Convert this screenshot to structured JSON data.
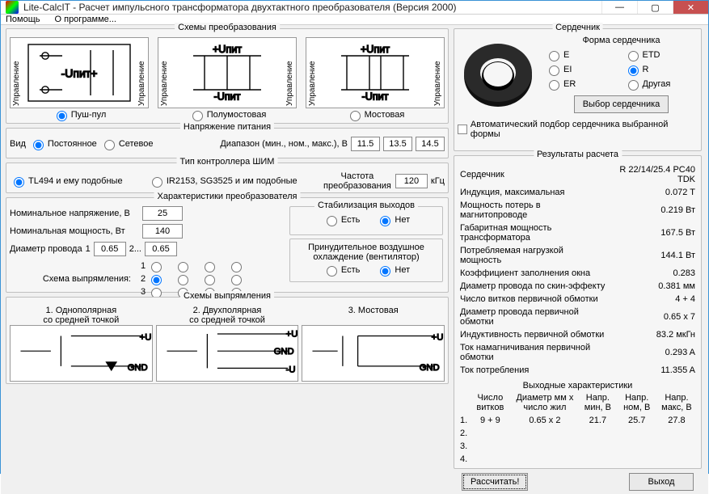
{
  "window": {
    "title": "Lite-CalcIT - Расчет импульсного трансформатора двухтактного преобразователя (Версия 2000)"
  },
  "menu": {
    "help": "Помощь",
    "about": "О программе..."
  },
  "schemes": {
    "group_title": "Схемы преобразования",
    "rot_label": "Управление",
    "upit_pos": "+Uпит",
    "upit_neg": "-Uпит",
    "upit_both": "-Uпит+",
    "opt1": "Пуш-пул",
    "opt2": "Полумостовая",
    "opt3": "Мостовая"
  },
  "voltage": {
    "group_title": "Напряжение питания",
    "kind_label": "Вид",
    "dc": "Постоянное",
    "ac": "Сетевое",
    "range_label": "Диапазон (мин., ном., макс.), В",
    "min": "11.5",
    "nom": "13.5",
    "max": "14.5"
  },
  "pwm": {
    "group_title": "Тип контроллера ШИМ",
    "opt1": "TL494 и ему подобные",
    "opt2": "IR2153, SG3525 и им подобные",
    "freq_label": "Частота преобразования",
    "freq_val": "120",
    "freq_unit": "кГц"
  },
  "conv": {
    "group_title": "Характеристики преобразователя",
    "nom_v": "Номинальное напряжение, В",
    "nom_v_val": "25",
    "nom_p": "Номинальная мощность, Вт",
    "nom_p_val": "140",
    "wire": "Диаметр провода",
    "wire1": "0.65",
    "wire2": "0.65",
    "stab_title": "Стабилизация выходов",
    "yes": "Есть",
    "no": "Нет",
    "cool_title": "Принудительное воздушное охлаждение (вентилятор)",
    "rect_label": "Схема выпрямления:"
  },
  "rect": {
    "group_title": "Схемы выпрямления",
    "t1a": "1. Однополярная",
    "t1b": "со средней точкой",
    "t2a": "2. Двухполярная",
    "t2b": "со средней точкой",
    "t3": "3. Мостовая",
    "u": "+U",
    "un": "-U",
    "gnd": "GND"
  },
  "core": {
    "group_title": "Сердечник",
    "shape_label": "Форма сердечника",
    "e": "E",
    "etd": "ETD",
    "ei": "EI",
    "r": "R",
    "er": "ER",
    "other": "Другая",
    "select_btn": "Выбор сердечника",
    "auto": "Автоматический подбор сердечника выбранной формы"
  },
  "results": {
    "group_title": "Результаты расчета",
    "rows": [
      [
        "Сердечник",
        "R 22/14/25.4 PC40 TDK"
      ],
      [
        "Индукция, максимальная",
        "0.072 T"
      ],
      [
        "Мощность потерь в магнитопроводе",
        "0.219 Вт"
      ],
      [
        "Габаритная мощность трансформатора",
        "167.5 Вт"
      ],
      [
        "Потребляемая нагрузкой мощность",
        "144.1 Вт"
      ],
      [
        "Коэффициент заполнения окна",
        "0.283"
      ],
      [
        "Диаметр провода по скин-эффекту",
        "0.381 мм"
      ],
      [
        "Число витков первичной обмотки",
        "4 + 4"
      ],
      [
        "Диаметр провода первичной обмотки",
        "0.65 x 7"
      ],
      [
        "Индуктивность первичной обмотки",
        "83.2 мкГн"
      ],
      [
        "Ток намагничивания первичной обмотки",
        "0.293 A"
      ],
      [
        "Ток потребления",
        "11.355 A"
      ]
    ],
    "out_title": "Выходные характеристики",
    "out_headers": [
      "Число витков",
      "Диаметр мм x число жил",
      "Напр. мин, В",
      "Напр. ном, В",
      "Напр. макс, В"
    ],
    "out_row1": [
      "9 + 9",
      "0.65 x 2",
      "21.7",
      "25.7",
      "27.8"
    ]
  },
  "footer": {
    "calc": "Рассчитать!",
    "exit": "Выход"
  }
}
